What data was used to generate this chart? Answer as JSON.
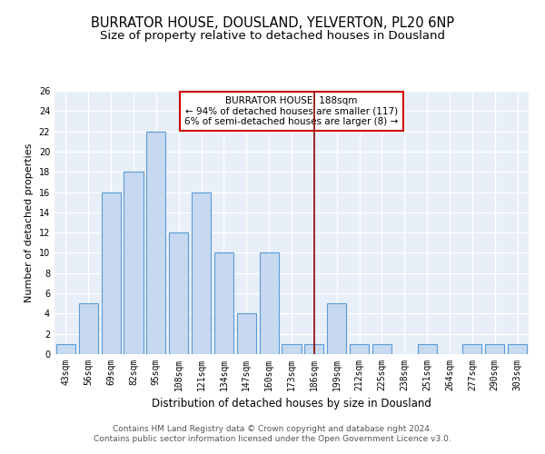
{
  "title": "BURRATOR HOUSE, DOUSLAND, YELVERTON, PL20 6NP",
  "subtitle": "Size of property relative to detached houses in Dousland",
  "xlabel": "Distribution of detached houses by size in Dousland",
  "ylabel": "Number of detached properties",
  "categories": [
    "43sqm",
    "56sqm",
    "69sqm",
    "82sqm",
    "95sqm",
    "108sqm",
    "121sqm",
    "134sqm",
    "147sqm",
    "160sqm",
    "173sqm",
    "186sqm",
    "199sqm",
    "212sqm",
    "225sqm",
    "238sqm",
    "251sqm",
    "264sqm",
    "277sqm",
    "290sqm",
    "303sqm"
  ],
  "values": [
    1,
    5,
    16,
    18,
    22,
    12,
    16,
    10,
    4,
    10,
    1,
    1,
    5,
    1,
    1,
    0,
    1,
    0,
    1,
    1,
    1
  ],
  "bar_color": "#c6d9f0",
  "bar_edge_color": "#5b9bd5",
  "vline_color": "#8b0000",
  "annotation_text": "BURRATOR HOUSE: 188sqm\n← 94% of detached houses are smaller (117)\n6% of semi-detached houses are larger (8) →",
  "annotation_box_color": "#ffffff",
  "annotation_box_edge": "#cc0000",
  "footer": "Contains HM Land Registry data © Crown copyright and database right 2024.\nContains public sector information licensed under the Open Government Licence v3.0.",
  "ylim": [
    0,
    26
  ],
  "yticks": [
    0,
    2,
    4,
    6,
    8,
    10,
    12,
    14,
    16,
    18,
    20,
    22,
    24,
    26
  ],
  "bg_color": "#e8eff8",
  "title_fontsize": 10.5,
  "subtitle_fontsize": 9.5,
  "footer_fontsize": 6.5,
  "ylabel_fontsize": 8,
  "xlabel_fontsize": 8.5,
  "tick_fontsize": 7,
  "annot_fontsize": 7.5
}
